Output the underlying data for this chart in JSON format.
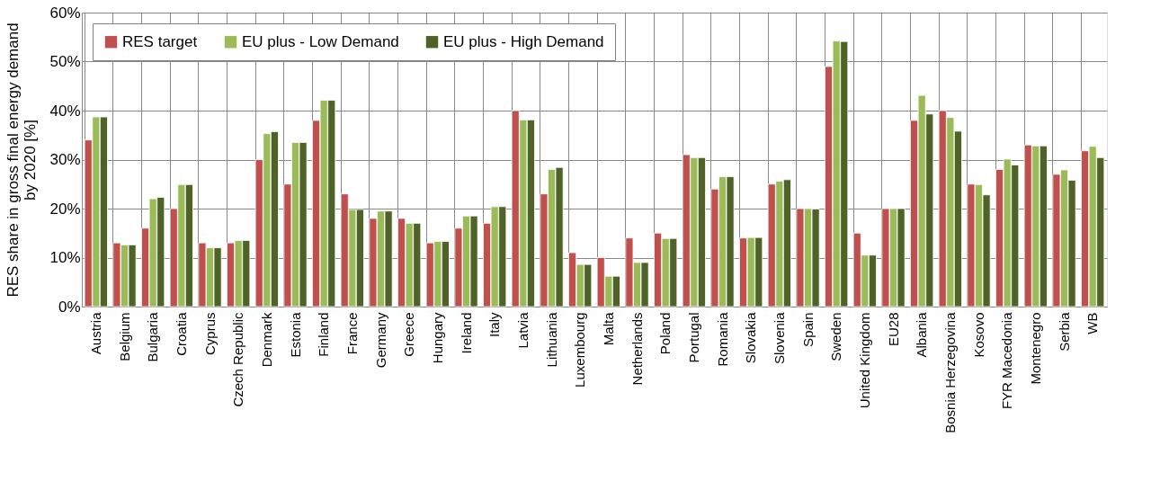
{
  "chart_data": {
    "type": "bar",
    "ylabel": "RES share in gross final energy demand\nby 2020 [%]",
    "categories": [
      "Austria",
      "Belgium",
      "Bulgaria",
      "Croatia",
      "Cyprus",
      "Czech Republic",
      "Denmark",
      "Estonia",
      "Finland",
      "France",
      "Germany",
      "Greece",
      "Hungary",
      "Ireland",
      "Italy",
      "Latvia",
      "Lithuania",
      "Luxembourg",
      "Malta",
      "Netherlands",
      "Poland",
      "Portugal",
      "Romania",
      "Slovakia",
      "Slovenia",
      "Spain",
      "Sweden",
      "United Kingdom",
      "EU28",
      "Albania",
      "Bosnia Herzegovina",
      "Kosovo",
      "FYR Macedonia",
      "Montenegro",
      "Serbia",
      "WB"
    ],
    "series": [
      {
        "name": "RES target",
        "color": "#c0504d",
        "values": [
          34,
          13,
          16,
          20,
          13,
          13,
          30,
          25,
          38,
          23,
          18,
          18,
          13,
          16,
          17,
          40,
          23,
          11,
          10,
          14,
          15,
          31,
          24,
          14,
          25,
          20,
          49,
          15,
          20,
          38,
          40,
          25,
          28,
          33,
          27,
          31.8
        ]
      },
      {
        "name": "EU plus - Low Demand",
        "color": "#9bbb59",
        "values": [
          38.7,
          12.6,
          22,
          24.9,
          12,
          13.5,
          35.3,
          33.5,
          42.1,
          19.8,
          19.5,
          17,
          13.3,
          18.5,
          20.4,
          38.1,
          28,
          8.6,
          6.2,
          9,
          13.9,
          30.4,
          26.5,
          14.1,
          25.6,
          20,
          54.2,
          10.5,
          20,
          43.1,
          38.6,
          24.9,
          30.1,
          32.8,
          27.9,
          32.7
        ]
      },
      {
        "name": "EU plus - High Demand",
        "color": "#4f6228",
        "values": [
          38.7,
          12.6,
          22.3,
          24.9,
          12,
          13.5,
          35.7,
          33.5,
          42.1,
          19.8,
          19.5,
          17,
          13.3,
          18.5,
          20.4,
          38.1,
          28.4,
          8.6,
          6.2,
          9,
          13.9,
          30.4,
          26.5,
          14.1,
          25.9,
          19.9,
          54.1,
          10.5,
          20,
          39.3,
          35.8,
          22.8,
          28.9,
          32.8,
          25.8,
          30.4
        ]
      }
    ],
    "ylim": [
      0,
      60
    ],
    "yticks": [
      {
        "value": 0,
        "label": "0%"
      },
      {
        "value": 10,
        "label": "10%"
      },
      {
        "value": 20,
        "label": "20%"
      },
      {
        "value": 30,
        "label": "30%"
      },
      {
        "value": 40,
        "label": "40%"
      },
      {
        "value": 50,
        "label": "50%"
      },
      {
        "value": 60,
        "label": "60%"
      }
    ],
    "grid": true,
    "legend": "top left"
  }
}
